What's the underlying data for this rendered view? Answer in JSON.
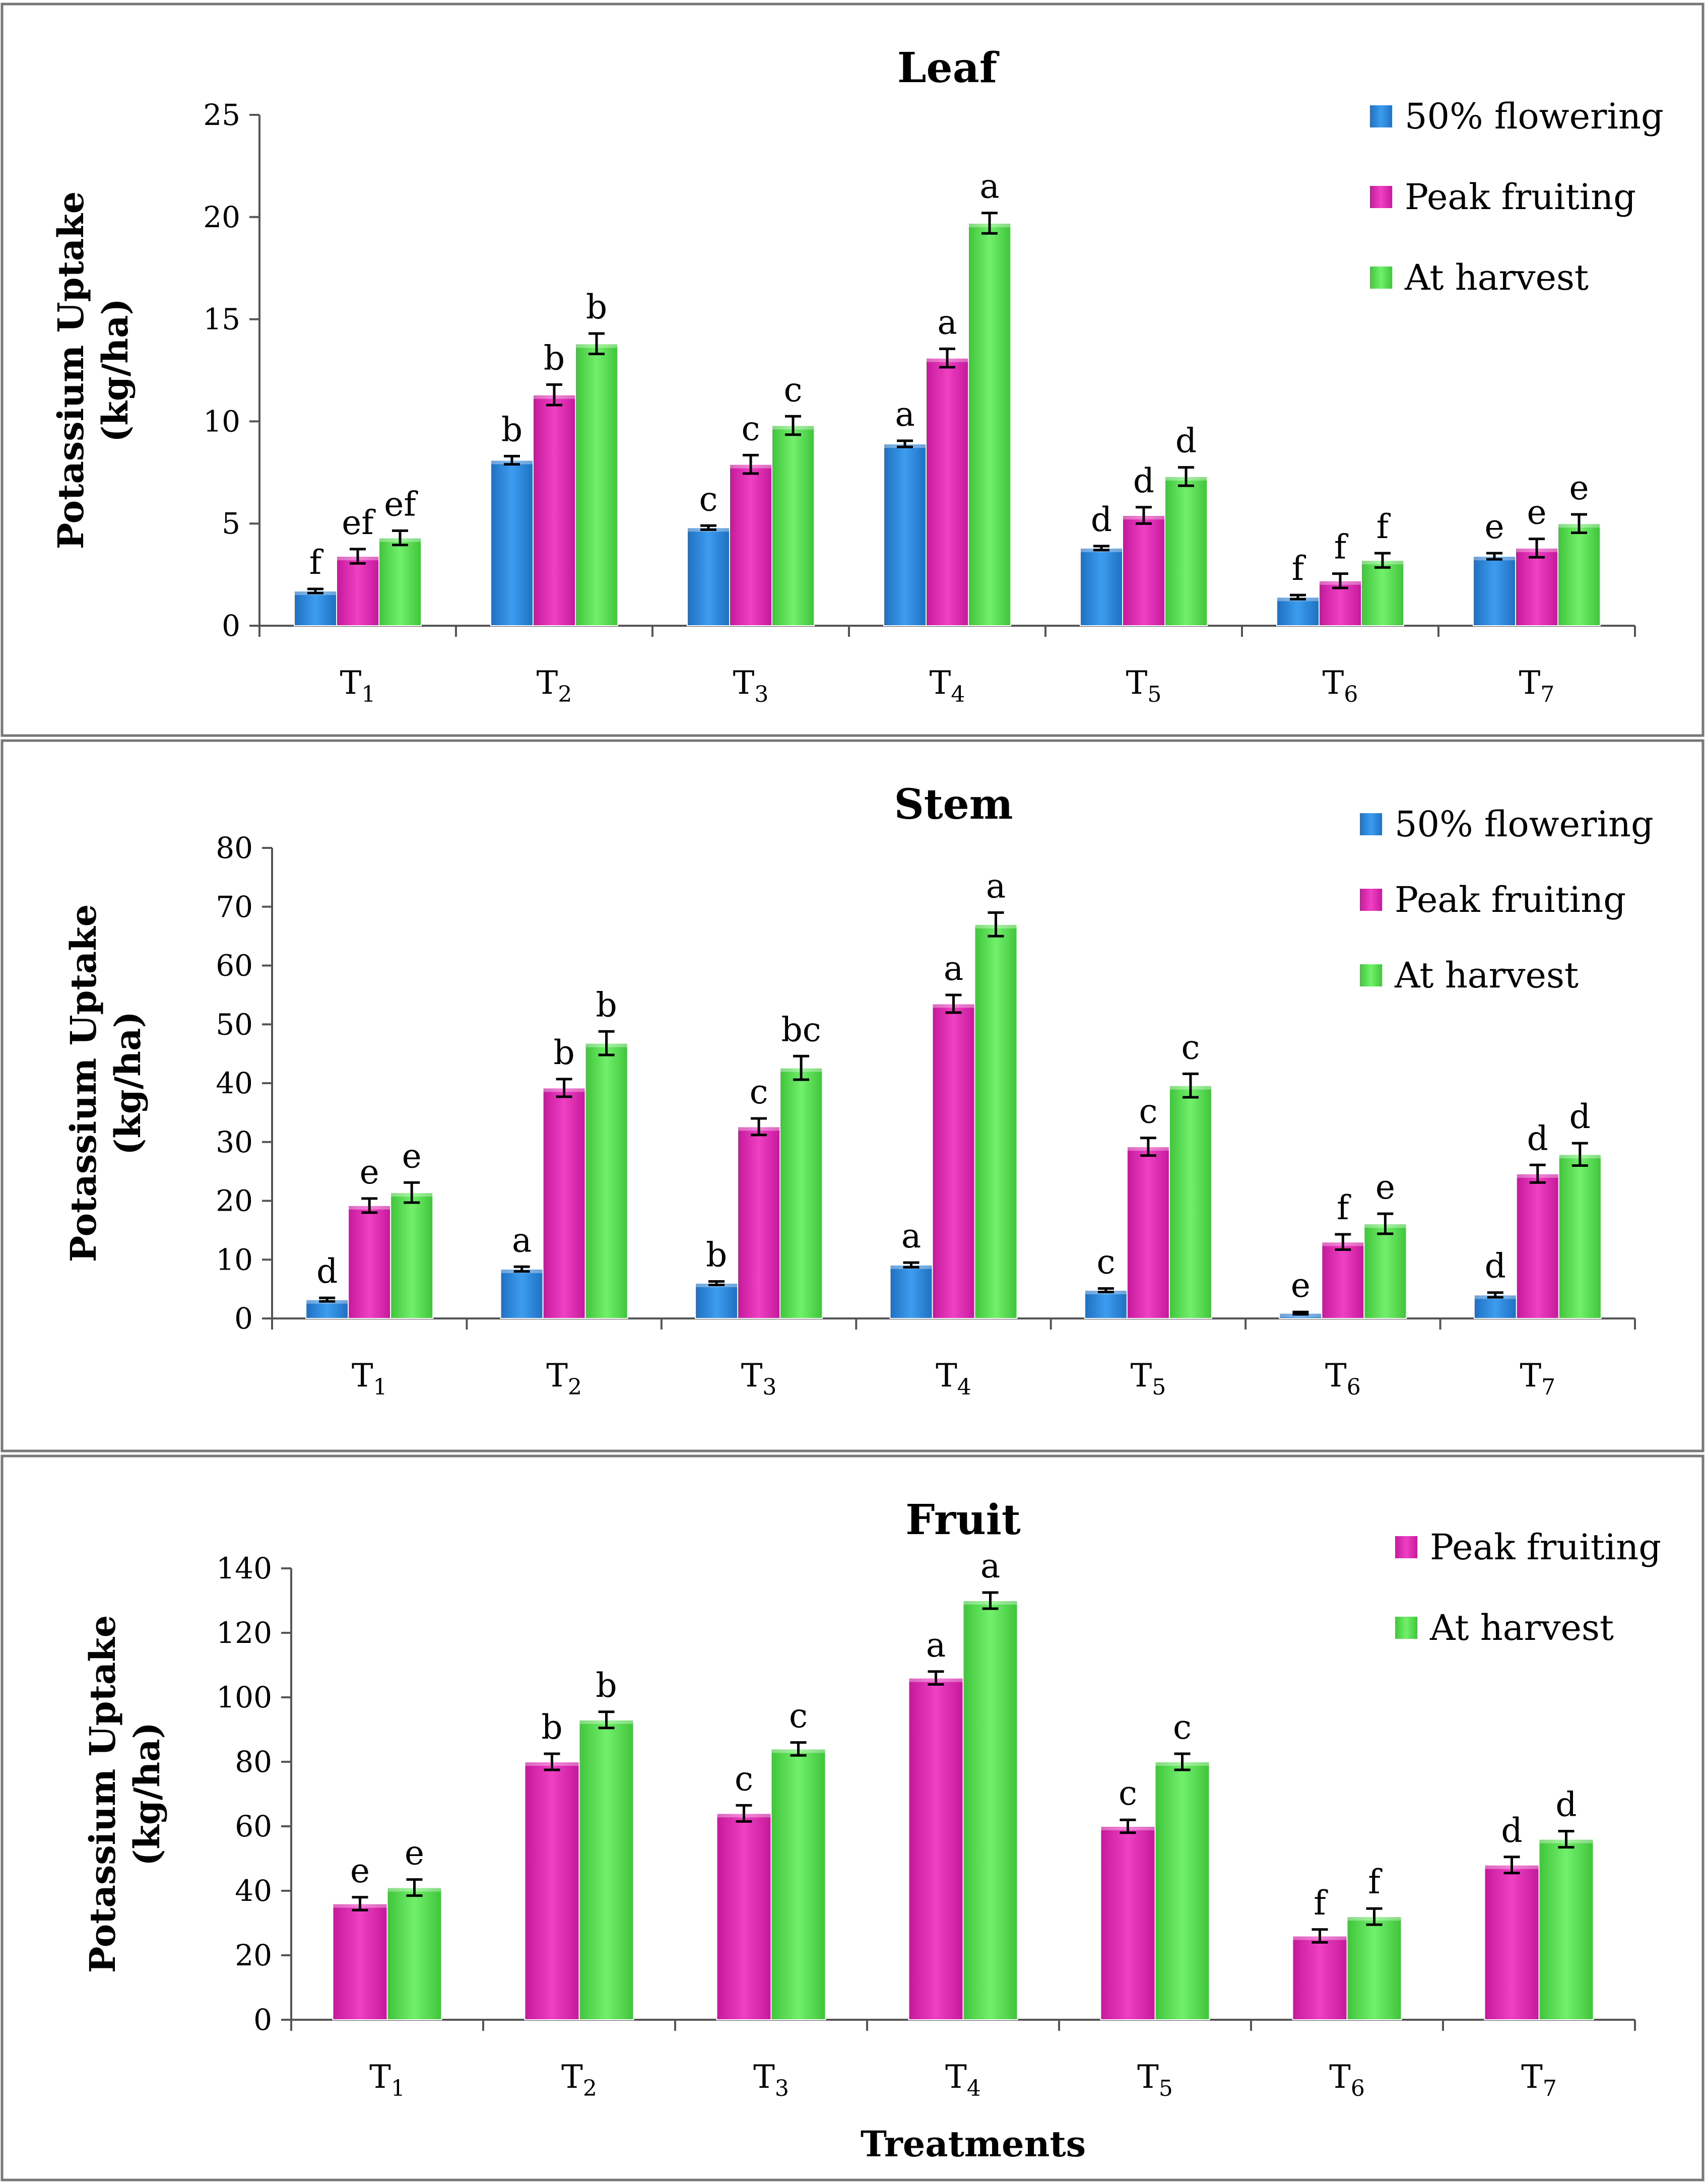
{
  "colors": {
    "flowering": "#2f8ee6",
    "peak": "#e62fb8",
    "harvest": "#5fe659",
    "axis": "#555555",
    "panel_border": "#777777"
  },
  "chart_data": [
    {
      "type": "bar",
      "title": "Leaf",
      "ylabel": [
        "Potassium Uptake",
        "(kg/ha)"
      ],
      "xlabel": "",
      "ylim": [
        0,
        25
      ],
      "yticks": [
        "0",
        "5",
        "10",
        "15",
        "20",
        "25"
      ],
      "categories": [
        {
          "base": "T",
          "sub": "1"
        },
        {
          "base": "T",
          "sub": "2"
        },
        {
          "base": "T",
          "sub": "3"
        },
        {
          "base": "T",
          "sub": "4"
        },
        {
          "base": "T",
          "sub": "5"
        },
        {
          "base": "T",
          "sub": "6"
        },
        {
          "base": "T",
          "sub": "7"
        }
      ],
      "series": [
        {
          "name": "50% flowering",
          "color_key": "flowering",
          "values": [
            1.7,
            8.1,
            4.8,
            8.9,
            3.8,
            1.4,
            3.4
          ],
          "errors": [
            0.1,
            0.2,
            0.1,
            0.15,
            0.1,
            0.1,
            0.15
          ],
          "letters": [
            "f",
            "b",
            "c",
            "a",
            "d",
            "f",
            "e"
          ]
        },
        {
          "name": "Peak fruiting",
          "color_key": "peak",
          "values": [
            3.4,
            11.3,
            7.9,
            13.1,
            5.4,
            2.2,
            3.8
          ],
          "errors": [
            0.35,
            0.5,
            0.45,
            0.45,
            0.4,
            0.35,
            0.45
          ],
          "letters": [
            "ef",
            "b",
            "c",
            "a",
            "d",
            "f",
            "e"
          ]
        },
        {
          "name": "At harvest",
          "color_key": "harvest",
          "values": [
            4.3,
            13.8,
            9.8,
            19.7,
            7.3,
            3.2,
            5.0
          ],
          "errors": [
            0.35,
            0.5,
            0.45,
            0.5,
            0.45,
            0.35,
            0.45
          ],
          "letters": [
            "ef",
            "b",
            "c",
            "a",
            "d",
            "f",
            "e"
          ]
        }
      ]
    },
    {
      "type": "bar",
      "title": "Stem",
      "ylabel": [
        "Potassium Uptake",
        "(kg/ha)"
      ],
      "xlabel": "",
      "ylim": [
        0,
        80
      ],
      "yticks": [
        "0",
        "10",
        "20",
        "30",
        "40",
        "50",
        "60",
        "70",
        "80"
      ],
      "categories": [
        {
          "base": "T",
          "sub": "1"
        },
        {
          "base": "T",
          "sub": "2"
        },
        {
          "base": "T",
          "sub": "3"
        },
        {
          "base": "T",
          "sub": "4"
        },
        {
          "base": "T",
          "sub": "5"
        },
        {
          "base": "T",
          "sub": "6"
        },
        {
          "base": "T",
          "sub": "7"
        }
      ],
      "series": [
        {
          "name": "50% flowering",
          "color_key": "flowering",
          "values": [
            3.2,
            8.4,
            6.0,
            9.1,
            4.8,
            0.9,
            4.0
          ],
          "errors": [
            0.3,
            0.4,
            0.3,
            0.4,
            0.3,
            0.2,
            0.4
          ],
          "letters": [
            "d",
            "a",
            "b",
            "a",
            "c",
            "e",
            "d"
          ]
        },
        {
          "name": "Peak fruiting",
          "color_key": "peak",
          "values": [
            19.2,
            39.2,
            32.6,
            53.5,
            29.2,
            13.0,
            24.6
          ],
          "errors": [
            1.2,
            1.5,
            1.4,
            1.5,
            1.5,
            1.3,
            1.5
          ],
          "letters": [
            "e",
            "b",
            "c",
            "a",
            "c",
            "f",
            "d"
          ]
        },
        {
          "name": "At harvest",
          "color_key": "harvest",
          "values": [
            21.4,
            46.8,
            42.6,
            67.0,
            39.6,
            16.1,
            27.9
          ],
          "errors": [
            1.7,
            2.0,
            2.0,
            2.0,
            2.0,
            1.7,
            1.9
          ],
          "letters": [
            "e",
            "b",
            "bc",
            "a",
            "c",
            "e",
            "d"
          ]
        }
      ]
    },
    {
      "type": "bar",
      "title": "Fruit",
      "ylabel": [
        "Potassium Uptake",
        "(kg/ha)"
      ],
      "xlabel": "Treatments",
      "ylim": [
        0,
        140
      ],
      "yticks": [
        "0",
        "20",
        "40",
        "60",
        "80",
        "100",
        "120",
        "140"
      ],
      "categories": [
        {
          "base": "T",
          "sub": "1"
        },
        {
          "base": "T",
          "sub": "2"
        },
        {
          "base": "T",
          "sub": "3"
        },
        {
          "base": "T",
          "sub": "4"
        },
        {
          "base": "T",
          "sub": "5"
        },
        {
          "base": "T",
          "sub": "6"
        },
        {
          "base": "T",
          "sub": "7"
        }
      ],
      "series": [
        {
          "name": "Peak fruiting",
          "color_key": "peak",
          "values": [
            36,
            80,
            64,
            106,
            60,
            26,
            48
          ],
          "errors": [
            2,
            2.5,
            2.5,
            2,
            2,
            2,
            2.5
          ],
          "letters": [
            "e",
            "b",
            "c",
            "a",
            "c",
            "f",
            "d"
          ]
        },
        {
          "name": "At harvest",
          "color_key": "harvest",
          "values": [
            41,
            93,
            84,
            130,
            80,
            32,
            56
          ],
          "errors": [
            2.5,
            2.5,
            2,
            2.5,
            2.5,
            2.5,
            2.5
          ],
          "letters": [
            "e",
            "b",
            "c",
            "a",
            "c",
            "f",
            "d"
          ]
        }
      ]
    }
  ]
}
